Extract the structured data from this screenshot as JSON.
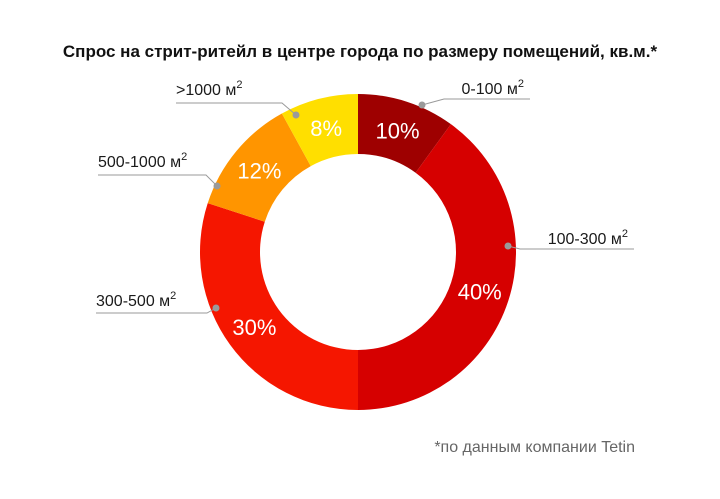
{
  "chart_data": {
    "type": "pie",
    "title": "Спрос на стрит-ритейл в центре города по размеру помещений, кв.м.*",
    "categories": [
      "0-100 м",
      "100-300 м",
      "300-500 м",
      "500-1000 м",
      ">1000 м"
    ],
    "unit_superscript": "2",
    "values": [
      10,
      40,
      30,
      12,
      8
    ],
    "value_labels": [
      "10%",
      "40%",
      "30%",
      "12%",
      "8%"
    ],
    "colors": [
      "#9e0000",
      "#d60000",
      "#f51600",
      "#ff9500",
      "#ffdf00"
    ],
    "donut": true,
    "legend": "none",
    "footnote": "*по данным компании Tetin"
  }
}
